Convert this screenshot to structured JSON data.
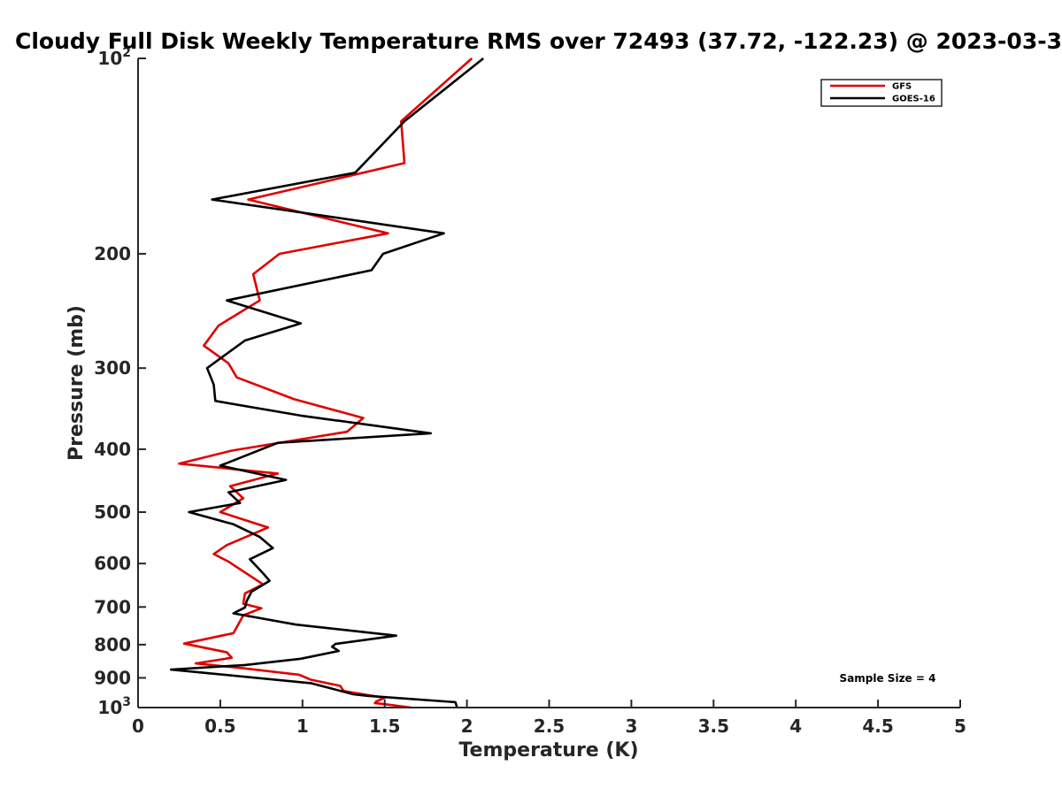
{
  "chart_data": {
    "type": "line",
    "title": "Cloudy Full Disk Weekly Temperature RMS over 72493 (37.72, -122.23) @ 2023-03-3",
    "xlabel": "Temperature (K)",
    "ylabel": "Pressure (mb)",
    "xlim": [
      0,
      5
    ],
    "ylim": [
      1000,
      100
    ],
    "yscale": "log",
    "x_ticks": [
      0,
      0.5,
      1,
      1.5,
      2,
      2.5,
      3,
      3.5,
      4,
      4.5,
      5
    ],
    "x_tick_labels": [
      "0",
      "0.5",
      "1",
      "1.5",
      "2",
      "2.5",
      "3",
      "3.5",
      "4",
      "4.5",
      "5"
    ],
    "y_ticks": [
      100,
      200,
      300,
      400,
      500,
      600,
      700,
      800,
      900,
      1000
    ],
    "y_tick_labels": [
      {
        "base": "10",
        "exp": "2"
      },
      {
        "base": "200",
        "exp": ""
      },
      {
        "base": "300",
        "exp": ""
      },
      {
        "base": "400",
        "exp": ""
      },
      {
        "base": "500",
        "exp": ""
      },
      {
        "base": "600",
        "exp": ""
      },
      {
        "base": "700",
        "exp": ""
      },
      {
        "base": "800",
        "exp": ""
      },
      {
        "base": "900",
        "exp": ""
      },
      {
        "base": "10",
        "exp": "3"
      }
    ],
    "legend_position": "top-right",
    "annotation": "Sample Size = 4",
    "series": [
      {
        "name": "GFS",
        "color": "#e00000",
        "points": [
          [
            2.03,
            100
          ],
          [
            1.6,
            125
          ],
          [
            1.62,
            145
          ],
          [
            0.67,
            165
          ],
          [
            1.52,
            186
          ],
          [
            0.86,
            200
          ],
          [
            0.7,
            215
          ],
          [
            0.74,
            236
          ],
          [
            0.49,
            258
          ],
          [
            0.4,
            277
          ],
          [
            0.55,
            295
          ],
          [
            0.6,
            310
          ],
          [
            0.95,
            335
          ],
          [
            1.37,
            358
          ],
          [
            1.27,
            376
          ],
          [
            0.57,
            402
          ],
          [
            0.25,
            421
          ],
          [
            0.85,
            436
          ],
          [
            0.56,
            456
          ],
          [
            0.64,
            476
          ],
          [
            0.5,
            500
          ],
          [
            0.79,
            528
          ],
          [
            0.54,
            562
          ],
          [
            0.46,
            580
          ],
          [
            0.55,
            596
          ],
          [
            0.76,
            646
          ],
          [
            0.65,
            667
          ],
          [
            0.64,
            692
          ],
          [
            0.75,
            703
          ],
          [
            0.64,
            721
          ],
          [
            0.58,
            768
          ],
          [
            0.28,
            797
          ],
          [
            0.54,
            822
          ],
          [
            0.57,
            838
          ],
          [
            0.35,
            855
          ],
          [
            0.64,
            870
          ],
          [
            0.98,
            890
          ],
          [
            1.05,
            906
          ],
          [
            1.23,
            926
          ],
          [
            1.25,
            943
          ],
          [
            1.5,
            966
          ],
          [
            1.45,
            978
          ],
          [
            1.44,
            984
          ],
          [
            1.5,
            988
          ],
          [
            1.66,
            1000
          ]
        ]
      },
      {
        "name": "GOES-16",
        "color": "#000000",
        "points": [
          [
            2.1,
            100
          ],
          [
            1.62,
            125
          ],
          [
            1.32,
            150
          ],
          [
            0.45,
            165
          ],
          [
            1.86,
            186
          ],
          [
            1.49,
            200
          ],
          [
            1.42,
            212
          ],
          [
            0.54,
            236
          ],
          [
            0.99,
            256
          ],
          [
            0.65,
            272
          ],
          [
            0.42,
            300
          ],
          [
            0.46,
            318
          ],
          [
            0.47,
            337
          ],
          [
            0.99,
            355
          ],
          [
            1.78,
            378
          ],
          [
            0.85,
            391
          ],
          [
            0.5,
            424
          ],
          [
            0.9,
            446
          ],
          [
            0.55,
            466
          ],
          [
            0.62,
            484
          ],
          [
            0.31,
            500
          ],
          [
            0.58,
            522
          ],
          [
            0.74,
            546
          ],
          [
            0.82,
            568
          ],
          [
            0.68,
            591
          ],
          [
            0.76,
            621
          ],
          [
            0.8,
            638
          ],
          [
            0.69,
            663
          ],
          [
            0.66,
            686
          ],
          [
            0.65,
            701
          ],
          [
            0.58,
            716
          ],
          [
            0.96,
            745
          ],
          [
            1.57,
            775
          ],
          [
            1.2,
            798
          ],
          [
            1.18,
            806
          ],
          [
            1.22,
            818
          ],
          [
            0.99,
            841
          ],
          [
            0.65,
            860
          ],
          [
            0.2,
            874
          ],
          [
            1.05,
            917
          ],
          [
            1.31,
            954
          ],
          [
            1.39,
            959
          ],
          [
            1.93,
            981
          ],
          [
            1.94,
            1000
          ]
        ]
      }
    ]
  }
}
